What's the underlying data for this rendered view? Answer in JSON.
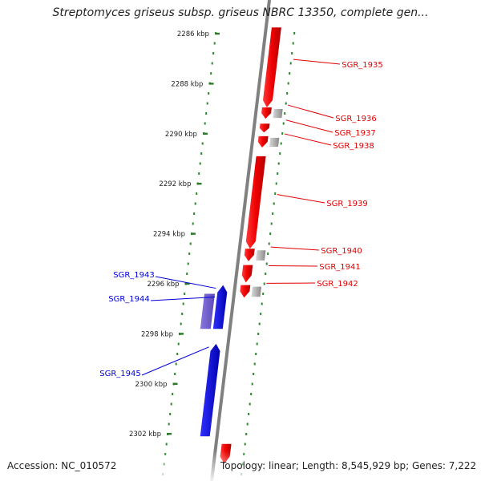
{
  "title": "Streptomyces griseus subsp. griseus NBRC 13350, complete gen...",
  "colors": {
    "forward": "#e00000",
    "reverse": "#0000d8",
    "forward_other": "#aaaaaa",
    "reverse_other": "#6a5acd",
    "axis": "#808080",
    "tick": "#2a7a2a",
    "dots": "#2a8a2a"
  },
  "ticks": [
    {
      "kbp": 2286,
      "label": "2286 kbp"
    },
    {
      "kbp": 2288,
      "label": "2288 kbp"
    },
    {
      "kbp": 2290,
      "label": "2290 kbp"
    },
    {
      "kbp": 2292,
      "label": "2292 kbp"
    },
    {
      "kbp": 2294,
      "label": "2294 kbp"
    },
    {
      "kbp": 2296,
      "label": "2296 kbp"
    },
    {
      "kbp": 2298,
      "label": "2298 kbp"
    },
    {
      "kbp": 2300,
      "label": "2300 kbp"
    },
    {
      "kbp": 2302,
      "label": "2302 kbp"
    }
  ],
  "genes": [
    {
      "name": "SGR_1935",
      "strand": "+",
      "start_kbp": 2285.75,
      "end_kbp": 2288.95
    },
    {
      "name": "SGR_1936",
      "strand": "+",
      "start_kbp": 2288.95,
      "end_kbp": 2289.4
    },
    {
      "name": "SGR_1937",
      "strand": "+",
      "start_kbp": 2289.6,
      "end_kbp": 2289.95
    },
    {
      "name": "SGR_1938",
      "strand": "+",
      "start_kbp": 2290.1,
      "end_kbp": 2290.55
    },
    {
      "name": "SGR_1939",
      "strand": "+",
      "start_kbp": 2290.9,
      "end_kbp": 2294.6
    },
    {
      "name": "SGR_1940",
      "strand": "+",
      "start_kbp": 2294.6,
      "end_kbp": 2295.1
    },
    {
      "name": "SGR_1941",
      "strand": "+",
      "start_kbp": 2295.25,
      "end_kbp": 2295.95
    },
    {
      "name": "SGR_1942",
      "strand": "+",
      "start_kbp": 2296.05,
      "end_kbp": 2296.55
    },
    {
      "name": "SGR_1943",
      "strand": "-",
      "start_kbp": 2296.05,
      "end_kbp": 2297.8
    },
    {
      "name": "SGR_1944",
      "strand": "-",
      "start_kbp": 2296.4,
      "end_kbp": 2297.8
    },
    {
      "name": "SGR_1945",
      "strand": "-",
      "start_kbp": 2298.4,
      "end_kbp": 2302.1
    },
    {
      "name": "",
      "strand": "+",
      "start_kbp": 2302.4,
      "end_kbp": 2303.2
    }
  ],
  "footer": {
    "accession": "Accession: NC_010572",
    "summary": "Topology: linear; Length: 8,545,929 bp; Genes: 7,222"
  }
}
